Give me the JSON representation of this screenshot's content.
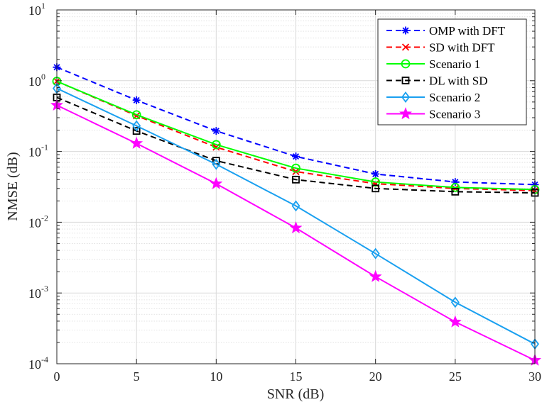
{
  "chart_data": {
    "type": "line",
    "title": "",
    "xlabel": "SNR (dB)",
    "ylabel": "NMSE (dB)",
    "xlim": [
      0,
      30
    ],
    "ylim": [
      0.0001,
      10
    ],
    "yscale": "log",
    "grid": true,
    "minor_grid": true,
    "legend_position": "top-right",
    "x_ticks": [
      0,
      5,
      10,
      15,
      20,
      25,
      30
    ],
    "y_ticks": [
      {
        "base": "10",
        "exp": "-4",
        "value": 0.0001
      },
      {
        "base": "10",
        "exp": "-3",
        "value": 0.001
      },
      {
        "base": "10",
        "exp": "-2",
        "value": 0.01
      },
      {
        "base": "10",
        "exp": "-1",
        "value": 0.1
      },
      {
        "base": "10",
        "exp": "0",
        "value": 1
      },
      {
        "base": "10",
        "exp": "1",
        "value": 10
      }
    ],
    "x": [
      0,
      5,
      10,
      15,
      20,
      25,
      30
    ],
    "series": [
      {
        "name": "OMP with DFT",
        "color": "#0000ff",
        "dash": "dashed",
        "marker": "asterisk",
        "values": [
          1.55,
          0.53,
          0.195,
          0.085,
          0.048,
          0.037,
          0.034
        ]
      },
      {
        "name": "SD with DFT",
        "color": "#ff0000",
        "dash": "dashed",
        "marker": "x",
        "values": [
          0.98,
          0.32,
          0.115,
          0.052,
          0.035,
          0.03,
          0.028
        ]
      },
      {
        "name": "Scenario 1",
        "color": "#00ff00",
        "dash": "solid",
        "marker": "circle",
        "values": [
          0.98,
          0.33,
          0.125,
          0.058,
          0.037,
          0.031,
          0.029
        ]
      },
      {
        "name": "DL with SD",
        "color": "#000000",
        "dash": "dashed",
        "marker": "square",
        "values": [
          0.58,
          0.195,
          0.074,
          0.04,
          0.03,
          0.027,
          0.026
        ]
      },
      {
        "name": "Scenario 2",
        "color": "#1aa0f0",
        "dash": "solid",
        "marker": "diamond",
        "values": [
          0.78,
          0.23,
          0.066,
          0.017,
          0.0036,
          0.00074,
          0.00019
        ]
      },
      {
        "name": "Scenario 3",
        "color": "#ff00ff",
        "dash": "solid",
        "marker": "star",
        "values": [
          0.45,
          0.13,
          0.035,
          0.0083,
          0.0017,
          0.00039,
          0.000112
        ]
      }
    ]
  }
}
